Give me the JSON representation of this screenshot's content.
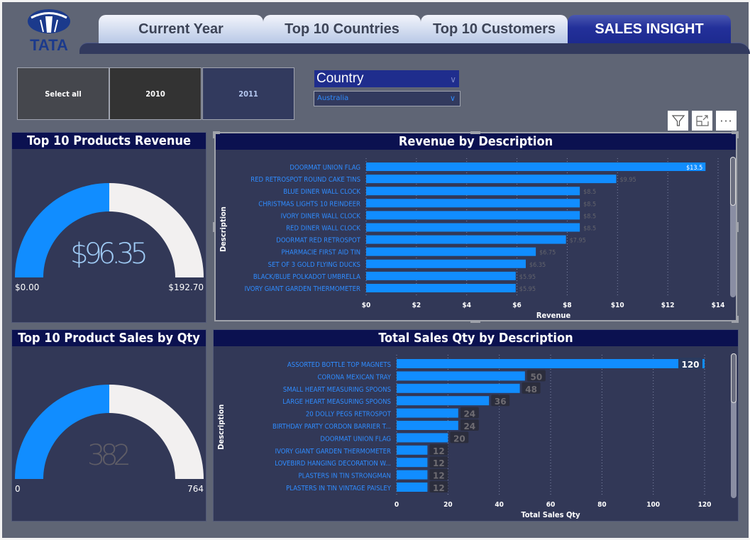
{
  "brand": {
    "logo_text": "TATA",
    "logo_icon": "tata-logo-icon"
  },
  "tabs": [
    {
      "label": "Current Year",
      "active": false
    },
    {
      "label": "Top 10 Countries",
      "active": false
    },
    {
      "label": "Top 10 Customers",
      "active": false
    },
    {
      "label": "SALES INSIGHT",
      "active": true
    }
  ],
  "year_slicer": {
    "options": [
      {
        "label": "Select all",
        "selected": false
      },
      {
        "label": "2010",
        "selected": false
      },
      {
        "label": "2011",
        "selected": true
      }
    ]
  },
  "country_slicer": {
    "title": "Country",
    "selected": "Australia"
  },
  "visual_header": {
    "filter_icon": "filter-icon",
    "focus_icon": "focus-mode-icon",
    "more_icon": "more-options-icon",
    "more_label": "···"
  },
  "colors": {
    "bar": "#118dff",
    "gauge_fill": "#118dff",
    "gauge_empty": "#f2f0f0",
    "card_bg": "#323857",
    "title_bg": "#0b1150",
    "label_blue": "#2f8cff"
  },
  "gauge_revenue": {
    "title": "Top 10 Products Revenue",
    "value_label": "$96.35",
    "value": 96.35,
    "min_label": "$0.00",
    "max_label": "$192.70",
    "min": 0,
    "max": 192.7
  },
  "gauge_qty": {
    "title": "Top 10 Product Sales by Qty",
    "value_label": "382",
    "value": 382,
    "min_label": "0",
    "max_label": "764",
    "min": 0,
    "max": 764
  },
  "chart_data": [
    {
      "type": "bar",
      "orientation": "horizontal",
      "title": "Revenue by Description",
      "xlabel": "Revenue",
      "ylabel": "Description",
      "xlim": [
        0,
        14
      ],
      "xticks": [
        "$0",
        "$2",
        "$4",
        "$6",
        "$8",
        "$10",
        "$12",
        "$14"
      ],
      "xtick_values": [
        0,
        2,
        4,
        6,
        8,
        10,
        12,
        14
      ],
      "grid": true,
      "categories": [
        "DOORMAT UNION FLAG",
        "RED RETROSPOT ROUND CAKE TINS",
        "BLUE DINER WALL CLOCK",
        "CHRISTMAS LIGHTS 10 REINDEER",
        "IVORY DINER WALL CLOCK",
        "RED DINER WALL CLOCK",
        "DOORMAT RED RETROSPOT",
        "PHARMACIE FIRST AID TIN",
        "SET OF 3 GOLD FLYING DUCKS",
        "BLACK/BLUE POLKADOT UMBRELLA",
        "IVORY GIANT GARDEN THERMOMETER"
      ],
      "values": [
        13.5,
        9.95,
        8.5,
        8.5,
        8.5,
        8.5,
        7.95,
        6.75,
        6.35,
        5.95,
        5.95
      ],
      "data_labels": [
        "$13.5",
        "$9.95",
        "$8.5",
        "$8.5",
        "$8.5",
        "$8.5",
        "$7.95",
        "$6.75",
        "$6.35",
        "$5.95",
        "$5.95"
      ]
    },
    {
      "type": "bar",
      "orientation": "horizontal",
      "title": "Total Sales Qty by Description",
      "xlabel": "Total Sales Qty",
      "ylabel": "Description",
      "xlim": [
        0,
        120
      ],
      "xticks": [
        "0",
        "20",
        "40",
        "60",
        "80",
        "100",
        "120"
      ],
      "xtick_values": [
        0,
        20,
        40,
        60,
        80,
        100,
        120
      ],
      "grid": true,
      "categories": [
        "ASSORTED BOTTLE TOP MAGNETS",
        "CORONA MEXICAN TRAY",
        "SMALL HEART MEASURING SPOONS",
        "LARGE HEART MEASURING SPOONS",
        "20 DOLLY PEGS RETROSPOT",
        "BIRTHDAY PARTY CORDON BARRIER T...",
        "DOORMAT UNION FLAG",
        "IVORY GIANT GARDEN THERMOMETER",
        "LOVEBIRD HANGING DECORATION W...",
        "PLASTERS IN TIN STRONGMAN",
        "PLASTERS IN TIN VINTAGE PAISLEY"
      ],
      "values": [
        120,
        50,
        48,
        36,
        24,
        24,
        20,
        12,
        12,
        12,
        12
      ],
      "data_labels": [
        "120",
        "50",
        "48",
        "36",
        "24",
        "24",
        "20",
        "12",
        "12",
        "12",
        "12"
      ]
    }
  ]
}
